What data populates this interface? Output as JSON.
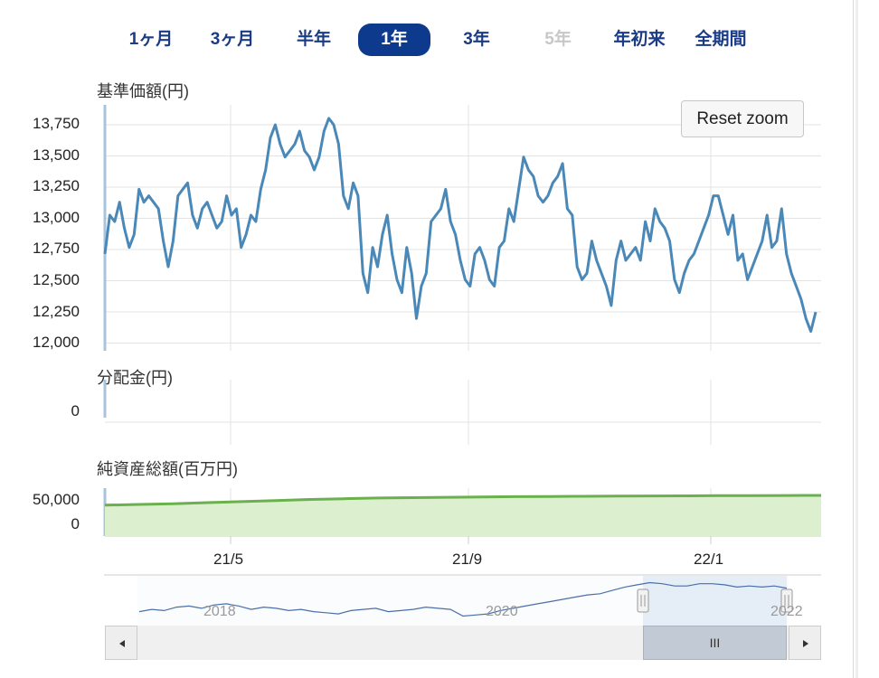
{
  "range_tabs": [
    {
      "label": "1ヶ月",
      "state": "normal"
    },
    {
      "label": "3ヶ月",
      "state": "normal"
    },
    {
      "label": "半年",
      "state": "normal"
    },
    {
      "label": "1年",
      "state": "active"
    },
    {
      "label": "3年",
      "state": "normal"
    },
    {
      "label": "5年",
      "state": "disabled"
    },
    {
      "label": "年初来",
      "state": "normal"
    },
    {
      "label": "全期間",
      "state": "normal"
    }
  ],
  "reset_zoom_label": "Reset zoom",
  "colors": {
    "price_line": "#4a88b8",
    "nav_line": "#6ab04c",
    "nav_fill": "#dcefcf",
    "active_tab": "#0d3a8c",
    "tab_text": "#1a3b86",
    "navigator_selection": "#d3e2f3"
  },
  "chart_data": [
    {
      "type": "line",
      "title": "基準価額(円)",
      "y_ticks": [
        "13,750",
        "13,500",
        "13,250",
        "13,000",
        "12,750",
        "12,500",
        "12,250",
        "12,000"
      ],
      "ylim": [
        12000,
        13750
      ],
      "x_ticks": [
        "21/5",
        "21/9",
        "22/1"
      ],
      "series": [
        {
          "values": [
            12750,
            13050,
            13000,
            13150,
            12950,
            12800,
            12900,
            13250,
            13150,
            13200,
            13150,
            13100,
            12850,
            12650,
            12850,
            13200,
            13250,
            13300,
            13050,
            12950,
            13100,
            13150,
            13050,
            12950,
            13000,
            13200,
            13050,
            13100,
            12800,
            12900,
            13050,
            13000,
            13250,
            13400,
            13650,
            13750,
            13600,
            13500,
            13550,
            13600,
            13700,
            13550,
            13500,
            13400,
            13500,
            13700,
            13800,
            13750,
            13600,
            13200,
            13100,
            13300,
            13200,
            12600,
            12450,
            12800,
            12650,
            12900,
            13050,
            12750,
            12550,
            12450,
            12800,
            12600,
            12250,
            12500,
            12600,
            13000,
            13050,
            13100,
            13250,
            13000,
            12900,
            12700,
            12550,
            12500,
            12750,
            12800,
            12700,
            12550,
            12500,
            12800,
            12850,
            13100,
            13000,
            13250,
            13500,
            13400,
            13350,
            13200,
            13150,
            13200,
            13300,
            13350,
            13450,
            13100,
            13050,
            12650,
            12550,
            12600,
            12850,
            12700,
            12600,
            12500,
            12350,
            12700,
            12850,
            12700,
            12750,
            12800,
            12700,
            13000,
            12850,
            13100,
            13000,
            12950,
            12850,
            12550,
            12450,
            12600,
            12700,
            12750,
            12850,
            12950,
            13050,
            13200,
            13200,
            13050,
            12900,
            13050,
            12700,
            12750,
            12550,
            12650,
            12750,
            12850,
            13050,
            12800,
            12850,
            13100,
            12750,
            12600,
            12500,
            12400,
            12250,
            12150,
            12300
          ]
        }
      ]
    },
    {
      "type": "bar",
      "title": "分配金(円)",
      "y_ticks": [
        "0"
      ],
      "values": []
    },
    {
      "type": "area",
      "title": "純資産総額(百万円)",
      "y_ticks": [
        "50,000",
        "0"
      ],
      "series": [
        {
          "values": [
            41000,
            42000,
            43000,
            44500,
            46000,
            47500,
            49000,
            50000,
            51000,
            51500,
            52000,
            52500,
            53000,
            53200,
            53500,
            53800,
            54000,
            54100,
            54300,
            54500,
            54600,
            54700
          ]
        }
      ]
    }
  ],
  "navigator": {
    "x_ticks": [
      "2018",
      "2020",
      "2022"
    ],
    "values": [
      11800,
      11900,
      11850,
      12000,
      12050,
      11950,
      12100,
      12150,
      12050,
      11900,
      12000,
      11950,
      11850,
      11900,
      11800,
      11750,
      11700,
      11850,
      11900,
      11950,
      11800,
      11850,
      11900,
      12000,
      11950,
      11900,
      11600,
      11650,
      11700,
      11850,
      11950,
      12050,
      12150,
      12250,
      12350,
      12450,
      12550,
      12600,
      12750,
      12900,
      13000,
      13100,
      13050,
      12950,
      12950,
      13050,
      13050,
      13000,
      12900,
      12950,
      12900,
      12950,
      12850
    ],
    "selected_range": [
      0.774,
      1.0
    ]
  },
  "scrollbar_grip": "III"
}
